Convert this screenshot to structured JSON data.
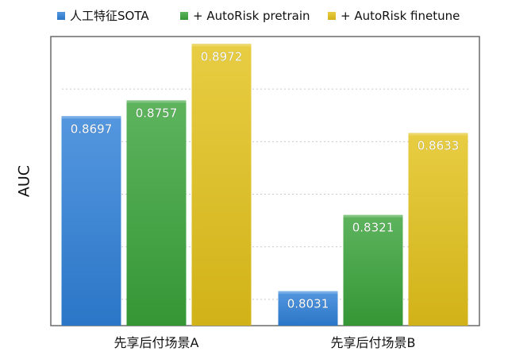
{
  "chart_data": {
    "type": "bar",
    "categories": [
      "先享后付场景A",
      "先享后付场景B"
    ],
    "series": [
      {
        "name": "人工特征SOTA",
        "values": [
          0.8697,
          0.8031
        ],
        "color": "#2f80d8"
      },
      {
        "name": "+ AutoRisk pretrain",
        "values": [
          0.8757,
          0.8321
        ],
        "color": "#3aa33a"
      },
      {
        "name": "+ AutoRisk finetune",
        "values": [
          0.8972,
          0.8633
        ],
        "color": "#e3c21a"
      }
    ],
    "ylabel": "AUC",
    "ylim": [
      0.79,
      0.9
    ],
    "grid": true,
    "legend_position": "top",
    "data_labels": true
  }
}
